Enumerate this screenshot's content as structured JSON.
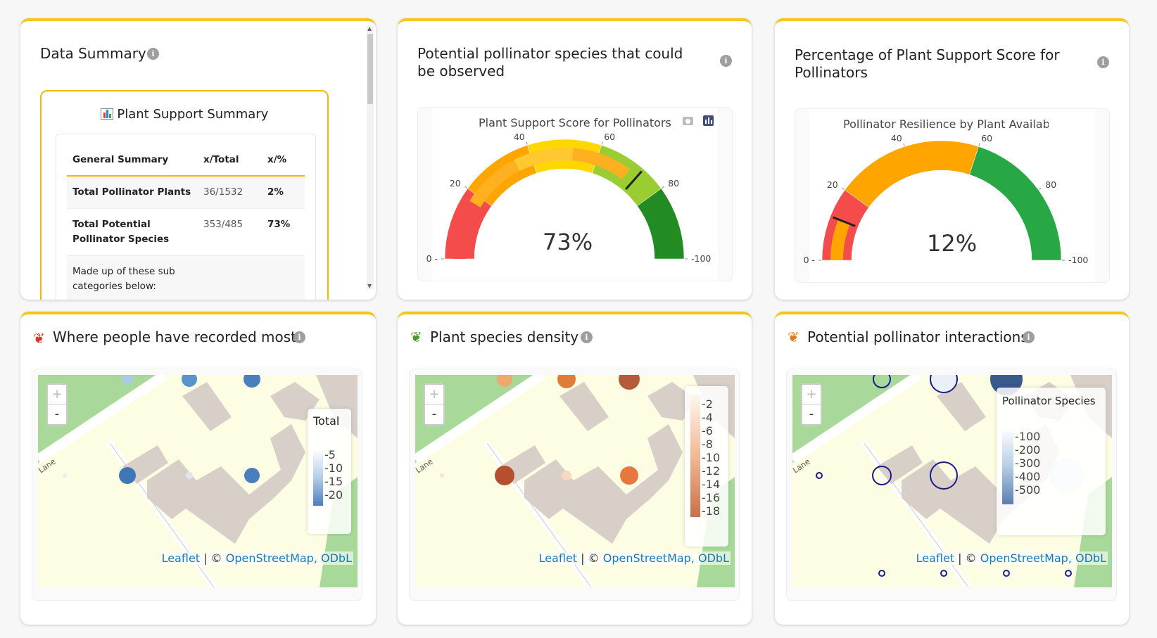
{
  "summary": {
    "title": "Data Summary",
    "box_title": "Plant Support Summary",
    "icon": "bar-chart-icon",
    "columns": [
      "General Summary",
      "x/Total",
      "x/%"
    ],
    "rows": [
      {
        "label": "Total Pollinator Plants",
        "total": "36/1532",
        "pct": "2%"
      },
      {
        "label": "Total Potential Pollinator Species",
        "total": "353/485",
        "pct": "73%"
      },
      {
        "label": "Made up of these sub categories below:",
        "total": "",
        "pct": ""
      }
    ]
  },
  "gauge1": {
    "card_title": "Potential pollinator species that could be observed",
    "chart_title": "Plant Support Score for Pollinators",
    "value_text": "73%",
    "ticks": [
      "0",
      "20",
      "40",
      "60",
      "80",
      "100"
    ],
    "toolbar_icons": [
      "camera-icon",
      "plotly-logo-icon"
    ]
  },
  "gauge2": {
    "card_title": "Percentage of Plant Support Score for Pollinators",
    "chart_title": "Pollinator Resilience by Plant Availability",
    "value_text": "12%",
    "ticks": [
      "0",
      "20",
      "40",
      "60",
      "80",
      "100"
    ]
  },
  "chart_data": [
    {
      "type": "gauge",
      "title": "Plant Support Score for Pollinators",
      "range": [
        0,
        100
      ],
      "value": 73,
      "bands": [
        {
          "from": 0,
          "to": 20,
          "color": "#f44b4b"
        },
        {
          "from": 20,
          "to": 40,
          "color": "#ffa500"
        },
        {
          "from": 40,
          "to": 60,
          "color": "#ffd700"
        },
        {
          "from": 60,
          "to": 80,
          "color": "#9acd32"
        },
        {
          "from": 80,
          "to": 100,
          "color": "#228b22"
        }
      ],
      "inner_band_value": 70,
      "inner_band_colors": [
        "#f44b4b",
        "#ffb020",
        "#ffc830",
        "#ffb020"
      ]
    },
    {
      "type": "gauge",
      "title": "Pollinator Resilience by Plant Availability",
      "range": [
        0,
        100
      ],
      "value": 12,
      "bands": [
        {
          "from": 0,
          "to": 20,
          "color": "#f44b4b"
        },
        {
          "from": 20,
          "to": 60,
          "color": "#ffa500"
        },
        {
          "from": 60,
          "to": 100,
          "color": "#28a745"
        }
      ],
      "inner_band_value": 12,
      "inner_band_colors": [
        "#ffa500"
      ]
    }
  ],
  "map1": {
    "title": "Where people have recorded most",
    "icon": "butterfly-red-icon",
    "legend_title": "Total",
    "legend_ticks": [
      "5",
      "10",
      "15",
      "20"
    ],
    "attribution_leaflet": "Leaflet",
    "attribution_sep": " | © ",
    "attribution_osm": "OpenStreetMap, ODbL",
    "street_label": "Lane",
    "zoom_in": "+",
    "zoom_out": "-"
  },
  "map2": {
    "title": "Plant species density",
    "icon": "seedling-icon",
    "legend_ticks": [
      "2",
      "4",
      "6",
      "8",
      "10",
      "12",
      "14",
      "16",
      "18"
    ],
    "attribution_leaflet": "Leaflet",
    "attribution_sep": " | © ",
    "attribution_osm": "OpenStreetMap, ODbL",
    "street_label": "Lane",
    "zoom_in": "+",
    "zoom_out": "-"
  },
  "map3": {
    "title": "Potential pollinator interactions",
    "icon": "butterfly-orange-icon",
    "legend_title": "Pollinator Species",
    "legend_ticks": [
      "100",
      "200",
      "300",
      "400",
      "500"
    ],
    "attribution_leaflet": "Leaflet",
    "attribution_sep": " | © ",
    "attribution_osm": "OpenStreetMap, ODbL",
    "street_label": "Lane",
    "zoom_in": "+",
    "zoom_out": "-"
  }
}
